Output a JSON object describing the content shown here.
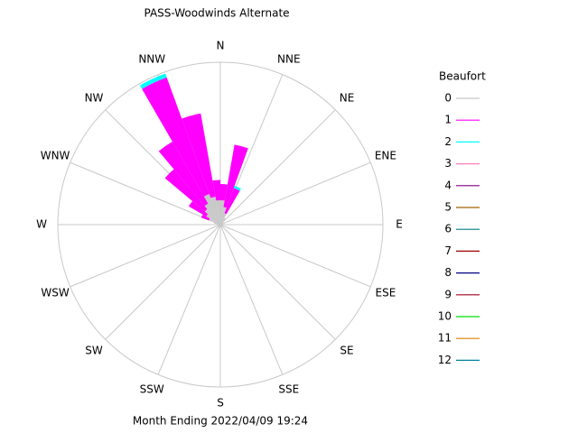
{
  "chart_data": {
    "type": "windrose",
    "title": "PASS-Woodwinds Alternate",
    "footer": "Month Ending 2022/04/09 19:24",
    "legend_title": "Beaufort",
    "x": [
      5,
      15,
      25,
      35,
      45,
      55,
      65,
      75,
      85,
      95,
      105,
      115,
      125,
      135,
      145,
      155,
      165,
      175,
      185,
      195,
      205,
      215,
      225,
      235,
      245,
      255,
      265,
      275,
      285,
      295,
      305,
      315,
      325,
      335,
      345,
      355
    ],
    "xticks": [
      {
        "value": 0,
        "label": "N"
      },
      {
        "value": 22.5,
        "label": "NNE"
      },
      {
        "value": 45,
        "label": "NE"
      },
      {
        "value": 67.5,
        "label": "ENE"
      },
      {
        "value": 90,
        "label": "E"
      },
      {
        "value": 112.5,
        "label": "ESE"
      },
      {
        "value": 135,
        "label": "SE"
      },
      {
        "value": 157.5,
        "label": "SSE"
      },
      {
        "value": 180,
        "label": "S"
      },
      {
        "value": 202.5,
        "label": "SSW"
      },
      {
        "value": 225,
        "label": "SW"
      },
      {
        "value": 247.5,
        "label": "WSW"
      },
      {
        "value": 270,
        "label": "W"
      },
      {
        "value": 292.5,
        "label": "WNW"
      },
      {
        "value": 315,
        "label": "NW"
      },
      {
        "value": 337.5,
        "label": "NNW"
      }
    ],
    "rlim": [
      0,
      20
    ],
    "series": [
      {
        "name": "0",
        "color": "#c8c8c8",
        "values": [
          3,
          2.2,
          1.5,
          1,
          0.5,
          0.3,
          0.3,
          0.2,
          0.2,
          0.2,
          0.2,
          0.2,
          0.2,
          0.2,
          0.2,
          0.2,
          0.2,
          0.3,
          0.3,
          0.2,
          0.2,
          0.2,
          0.3,
          0.3,
          0.3,
          0.3,
          0.4,
          0.5,
          0.8,
          1.5,
          2,
          2.5,
          3,
          4,
          3.5,
          3
        ]
      },
      {
        "name": "1",
        "color": "#ff00ff",
        "values": [
          2,
          7.8,
          3.3,
          0,
          0,
          0,
          0,
          0,
          0,
          0,
          0,
          0,
          0,
          0,
          0,
          0,
          0,
          0,
          0,
          0,
          0,
          0,
          0,
          0,
          0,
          0,
          0,
          0,
          0,
          1,
          2.5,
          6.4,
          8.8,
          15.3,
          10.4,
          2.5
        ]
      },
      {
        "name": "2",
        "color": "#00ffff",
        "values": [
          0,
          0,
          0.3,
          0,
          0,
          0,
          0,
          0,
          0,
          0,
          0,
          0,
          0,
          0,
          0,
          0,
          0,
          0,
          0,
          0,
          0,
          0,
          0,
          0,
          0,
          0,
          0,
          0,
          0,
          0,
          0,
          0,
          0,
          0.5,
          0,
          0
        ]
      },
      {
        "name": "3",
        "color": "#ff80c0",
        "values": [
          0,
          0,
          0,
          0,
          0,
          0,
          0,
          0,
          0,
          0,
          0,
          0,
          0,
          0,
          0,
          0,
          0,
          0,
          0,
          0,
          0,
          0,
          0,
          0,
          0,
          0,
          0,
          0,
          0,
          0,
          0,
          0,
          0,
          0,
          0,
          0
        ]
      },
      {
        "name": "4",
        "color": "#800080",
        "values": [
          0,
          0,
          0,
          0,
          0,
          0,
          0,
          0,
          0,
          0,
          0,
          0,
          0,
          0,
          0,
          0,
          0,
          0,
          0,
          0,
          0,
          0,
          0,
          0,
          0,
          0,
          0,
          0,
          0,
          0,
          0,
          0,
          0,
          0,
          0,
          0
        ]
      },
      {
        "name": "5",
        "color": "#a06000",
        "values": [
          0,
          0,
          0,
          0,
          0,
          0,
          0,
          0,
          0,
          0,
          0,
          0,
          0,
          0,
          0,
          0,
          0,
          0,
          0,
          0,
          0,
          0,
          0,
          0,
          0,
          0,
          0,
          0,
          0,
          0,
          0,
          0,
          0,
          0,
          0,
          0
        ]
      },
      {
        "name": "6",
        "color": "#008080",
        "values": [
          0,
          0,
          0,
          0,
          0,
          0,
          0,
          0,
          0,
          0,
          0,
          0,
          0,
          0,
          0,
          0,
          0,
          0,
          0,
          0,
          0,
          0,
          0,
          0,
          0,
          0,
          0,
          0,
          0,
          0,
          0,
          0,
          0,
          0,
          0,
          0
        ]
      },
      {
        "name": "7",
        "color": "#a00000",
        "values": [
          0,
          0,
          0,
          0,
          0,
          0,
          0,
          0,
          0,
          0,
          0,
          0,
          0,
          0,
          0,
          0,
          0,
          0,
          0,
          0,
          0,
          0,
          0,
          0,
          0,
          0,
          0,
          0,
          0,
          0,
          0,
          0,
          0,
          0,
          0,
          0
        ]
      },
      {
        "name": "8",
        "color": "#000080",
        "values": [
          0,
          0,
          0,
          0,
          0,
          0,
          0,
          0,
          0,
          0,
          0,
          0,
          0,
          0,
          0,
          0,
          0,
          0,
          0,
          0,
          0,
          0,
          0,
          0,
          0,
          0,
          0,
          0,
          0,
          0,
          0,
          0,
          0,
          0,
          0,
          0
        ]
      },
      {
        "name": "9",
        "color": "#a00020",
        "values": [
          0,
          0,
          0,
          0,
          0,
          0,
          0,
          0,
          0,
          0,
          0,
          0,
          0,
          0,
          0,
          0,
          0,
          0,
          0,
          0,
          0,
          0,
          0,
          0,
          0,
          0,
          0,
          0,
          0,
          0,
          0,
          0,
          0,
          0,
          0,
          0
        ]
      },
      {
        "name": "10",
        "color": "#00e000",
        "values": [
          0,
          0,
          0,
          0,
          0,
          0,
          0,
          0,
          0,
          0,
          0,
          0,
          0,
          0,
          0,
          0,
          0,
          0,
          0,
          0,
          0,
          0,
          0,
          0,
          0,
          0,
          0,
          0,
          0,
          0,
          0,
          0,
          0,
          0,
          0,
          0
        ]
      },
      {
        "name": "11",
        "color": "#e08000",
        "values": [
          0,
          0,
          0,
          0,
          0,
          0,
          0,
          0,
          0,
          0,
          0,
          0,
          0,
          0,
          0,
          0,
          0,
          0,
          0,
          0,
          0,
          0,
          0,
          0,
          0,
          0,
          0,
          0,
          0,
          0,
          0,
          0,
          0,
          0,
          0,
          0
        ]
      },
      {
        "name": "12",
        "color": "#0080a0",
        "values": [
          0,
          0,
          0,
          0,
          0,
          0,
          0,
          0,
          0,
          0,
          0,
          0,
          0,
          0,
          0,
          0,
          0,
          0,
          0,
          0,
          0,
          0,
          0,
          0,
          0,
          0,
          0,
          0,
          0,
          0,
          0,
          0,
          0,
          0,
          0,
          0
        ]
      }
    ]
  }
}
